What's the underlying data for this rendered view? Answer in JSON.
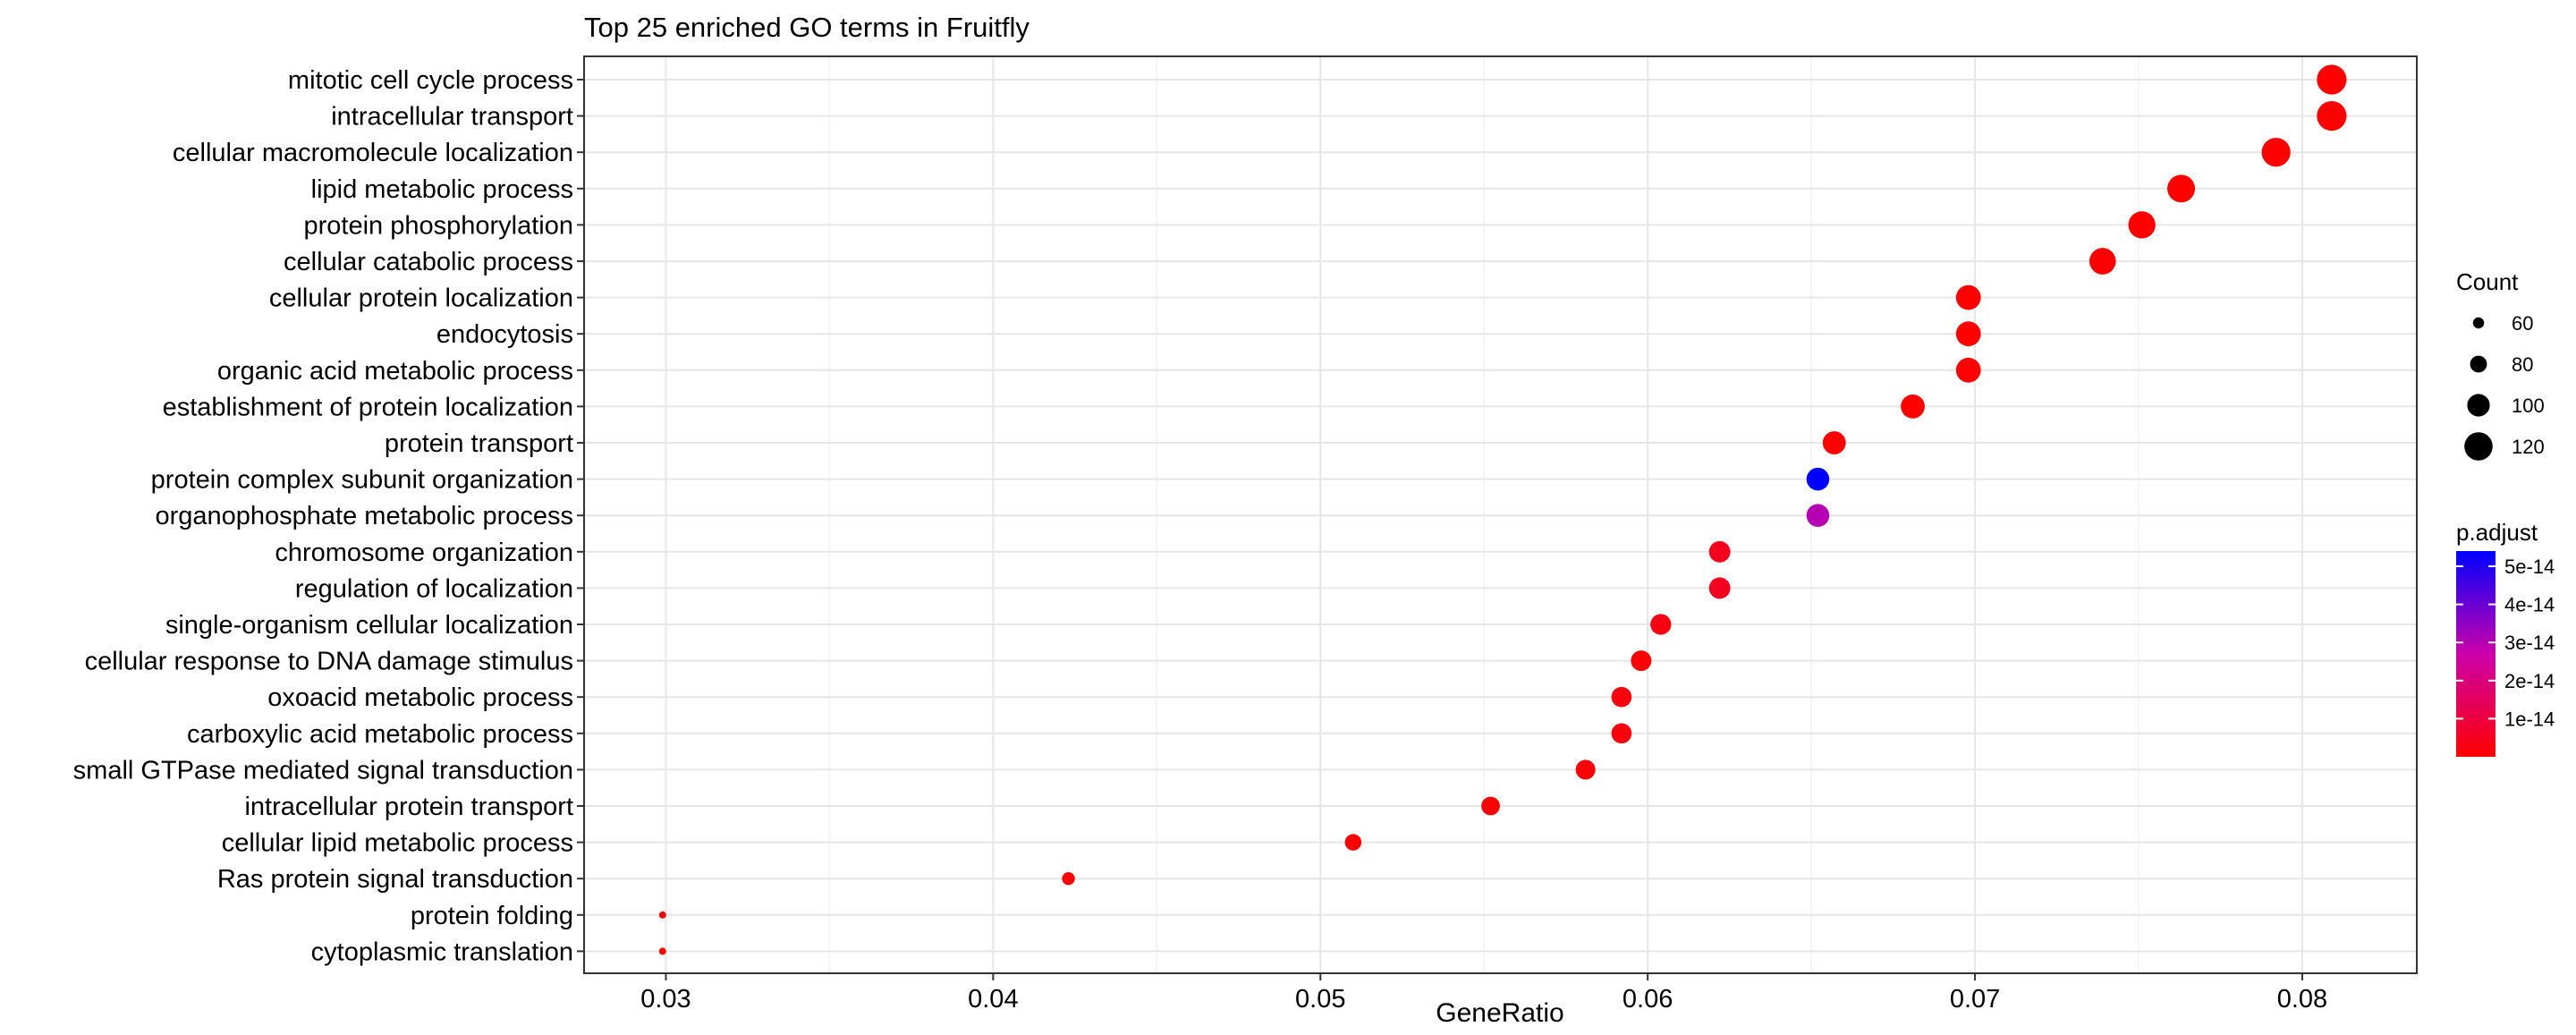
{
  "chart_data": {
    "type": "scatter",
    "title": "Top 25 enriched GO terms in Fruitfly",
    "xlabel": "GeneRatio",
    "ylabel": "",
    "xlim": [
      0.0275,
      0.0835
    ],
    "xticks": [
      0.03,
      0.04,
      0.05,
      0.06,
      0.07,
      0.08
    ],
    "xtick_labels": [
      "0.03",
      "0.04",
      "0.05",
      "0.06",
      "0.07",
      "0.08"
    ],
    "grid": true,
    "legend_position": "right",
    "size_legend": {
      "title": "Count",
      "breaks": [
        60,
        80,
        100,
        120
      ],
      "labels": [
        "60",
        "80",
        "100",
        "120"
      ]
    },
    "color_legend": {
      "title": "p.adjust",
      "low_color": "#ff0000",
      "high_color": "#0000ff",
      "range": [
        0,
        5.4e-14
      ],
      "breaks": [
        1e-14,
        2e-14,
        3e-14,
        4e-14,
        5e-14
      ],
      "labels": [
        "1e-14",
        "2e-14",
        "3e-14",
        "4e-14",
        "5e-14"
      ]
    },
    "points": [
      {
        "term": "mitotic cell cycle process",
        "x": 0.0809,
        "count": 125,
        "p_adjust": 1e-16
      },
      {
        "term": "intracellular transport",
        "x": 0.0809,
        "count": 125,
        "p_adjust": 1e-16
      },
      {
        "term": "cellular macromolecule localization",
        "x": 0.0792,
        "count": 122,
        "p_adjust": 1e-16
      },
      {
        "term": "lipid metabolic process",
        "x": 0.0763,
        "count": 118,
        "p_adjust": 1e-16
      },
      {
        "term": "protein phosphorylation",
        "x": 0.0751,
        "count": 116,
        "p_adjust": 1e-16
      },
      {
        "term": "cellular catabolic process",
        "x": 0.0739,
        "count": 114,
        "p_adjust": 1e-16
      },
      {
        "term": "cellular protein localization",
        "x": 0.0698,
        "count": 108,
        "p_adjust": 1e-16
      },
      {
        "term": "endocytosis",
        "x": 0.0698,
        "count": 108,
        "p_adjust": 1e-16
      },
      {
        "term": "organic acid metabolic process",
        "x": 0.0698,
        "count": 108,
        "p_adjust": 1e-16
      },
      {
        "term": "establishment of protein localization",
        "x": 0.0681,
        "count": 105,
        "p_adjust": 1e-16
      },
      {
        "term": "protein transport",
        "x": 0.0657,
        "count": 102,
        "p_adjust": 1e-16
      },
      {
        "term": "protein complex subunit organization",
        "x": 0.0652,
        "count": 101,
        "p_adjust": 5.4e-14
      },
      {
        "term": "organophosphate metabolic process",
        "x": 0.0652,
        "count": 101,
        "p_adjust": 3e-14
      },
      {
        "term": "chromosome organization",
        "x": 0.0622,
        "count": 96,
        "p_adjust": 5e-15
      },
      {
        "term": "regulation of localization",
        "x": 0.0622,
        "count": 96,
        "p_adjust": 5e-15
      },
      {
        "term": "single-organism cellular localization",
        "x": 0.0604,
        "count": 94,
        "p_adjust": 3e-15
      },
      {
        "term": "cellular response to DNA damage stimulus",
        "x": 0.0598,
        "count": 93,
        "p_adjust": 1e-15
      },
      {
        "term": "oxoacid metabolic process",
        "x": 0.0592,
        "count": 92,
        "p_adjust": 2e-15
      },
      {
        "term": "carboxylic acid metabolic process",
        "x": 0.0592,
        "count": 92,
        "p_adjust": 2e-15
      },
      {
        "term": "small GTPase mediated signal transduction",
        "x": 0.0581,
        "count": 90,
        "p_adjust": 1e-15
      },
      {
        "term": "intracellular protein transport",
        "x": 0.0552,
        "count": 86,
        "p_adjust": 1e-16
      },
      {
        "term": "cellular lipid metabolic process",
        "x": 0.051,
        "count": 79,
        "p_adjust": 1e-16
      },
      {
        "term": "Ras protein signal transduction",
        "x": 0.0423,
        "count": 66,
        "p_adjust": 1e-16
      },
      {
        "term": "protein folding",
        "x": 0.0299,
        "count": 46,
        "p_adjust": 1e-16
      },
      {
        "term": "cytoplasmic translation",
        "x": 0.0299,
        "count": 46,
        "p_adjust": 1e-16
      }
    ]
  }
}
